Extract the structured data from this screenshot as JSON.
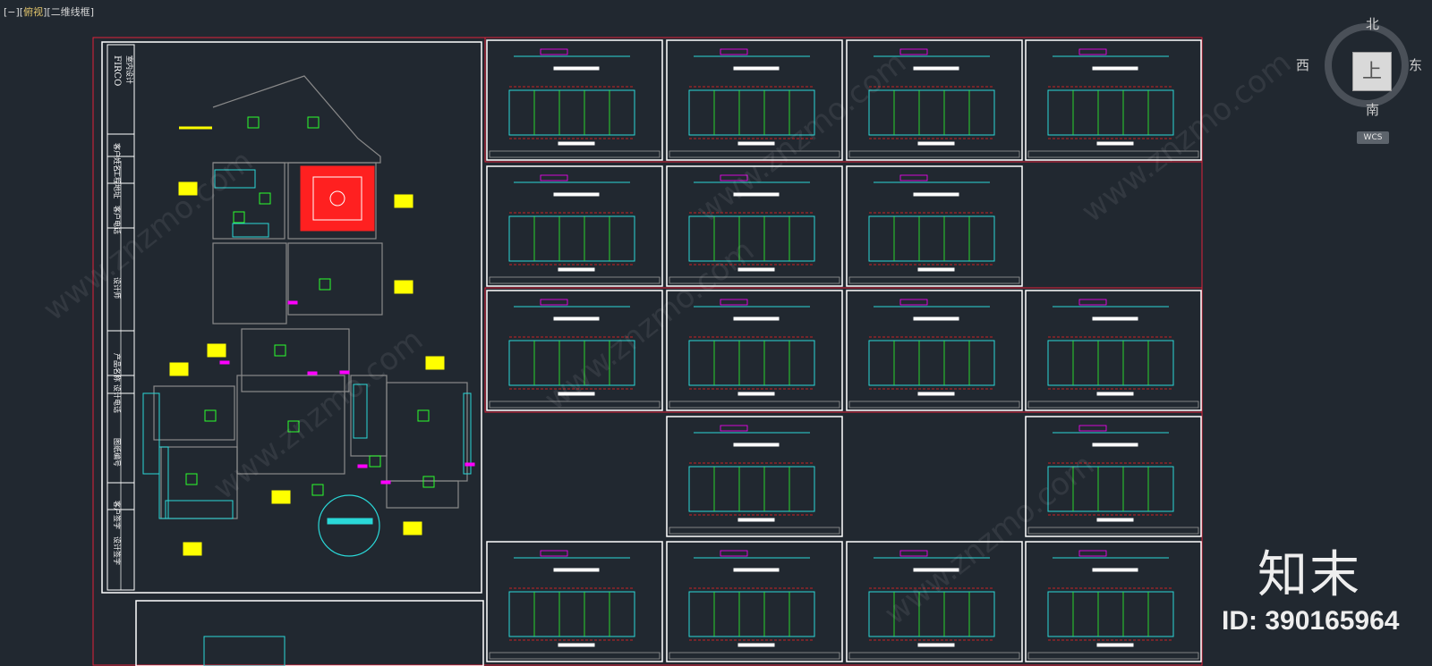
{
  "viewport": {
    "prefix": "[−][",
    "view": "俯视",
    "mid": "][",
    "style": "二维线框",
    "suffix": "]"
  },
  "viewcube": {
    "north": "北",
    "south": "南",
    "east": "东",
    "west": "西",
    "face": "上",
    "wcs": "WCS"
  },
  "title_block": {
    "logo": "FIRCO",
    "company": "室内设计",
    "fields": [
      "客户姓名",
      "工程地址",
      "客户电话",
      "设计师",
      "产品名称",
      "设计电话",
      "图纸编号",
      "客户签字",
      "设计签字"
    ]
  },
  "watermark": {
    "brand": "知末",
    "id": "ID: 390165964",
    "site": "www.znzmo.com"
  },
  "colors": {
    "background": "#212830",
    "frame": "#e0223a",
    "sheet": "#ffffff",
    "cyan": "#2ad8d8",
    "yellow": "#ffff00",
    "green": "#2cff2c",
    "magenta": "#ff00ff",
    "red": "#ff2020"
  }
}
